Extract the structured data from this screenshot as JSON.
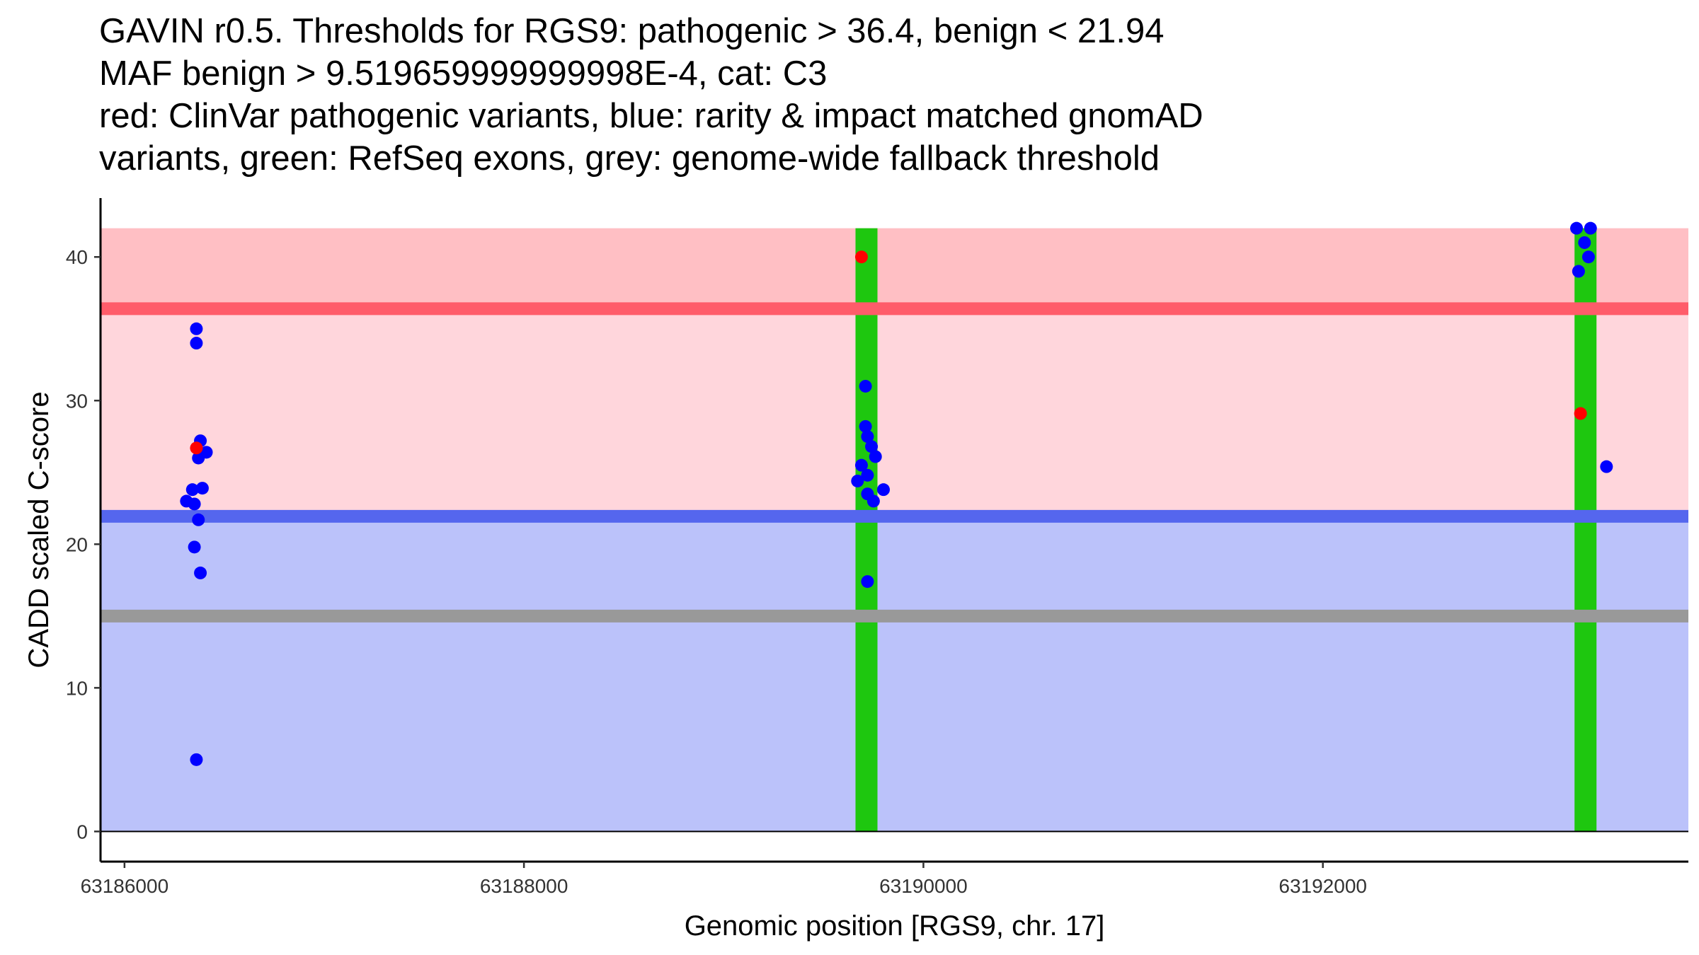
{
  "title_lines": [
    "GAVIN r0.5. Thresholds for RGS9: pathogenic > 36.4, benign < 21.94",
    "MAF benign > 9.519659999999998E-4, cat: C3",
    "red: ClinVar pathogenic variants, blue: rarity & impact matched gnomAD",
    "variants, green: RefSeq exons, grey: genome-wide fallback threshold"
  ],
  "chart_data": {
    "type": "scatter",
    "xlabel": "Genomic position [RGS9, chr. 17]",
    "ylabel": "CADD scaled C-score",
    "xlim": [
      63185880,
      63193830
    ],
    "ylim": [
      -2.1,
      44.1
    ],
    "x_ticks": [
      63186000,
      63188000,
      63190000,
      63192000
    ],
    "y_ticks": [
      0,
      10,
      20,
      30,
      40
    ],
    "colors": {
      "pathogenic_region": "#ffbfc4",
      "mid_region": "#ffd6dc",
      "benign_region": "#bbc2fa",
      "pathogenic_line": "#ff5c6a",
      "benign_line": "#5566ee",
      "fallback_line": "#999999",
      "exon": "#1ec70f",
      "pathogenic_point": "#ff0000",
      "benign_point": "#0000ff"
    },
    "thresholds": {
      "pathogenic": 36.4,
      "benign": 21.94,
      "fallback": 15.0,
      "region_top": 42.0
    },
    "exons": [
      {
        "start": 63189660,
        "end": 63189770
      },
      {
        "start": 63193260,
        "end": 63193370
      }
    ],
    "series": [
      {
        "name": "ClinVar pathogenic",
        "color": "#ff0000",
        "points": [
          {
            "x": 63186360,
            "y": 26.7
          },
          {
            "x": 63189690,
            "y": 40.0
          },
          {
            "x": 63193290,
            "y": 29.1
          }
        ]
      },
      {
        "name": "gnomAD matched",
        "color": "#0000ff",
        "points": [
          {
            "x": 63186360,
            "y": 35.0
          },
          {
            "x": 63186360,
            "y": 34.0
          },
          {
            "x": 63186380,
            "y": 27.2
          },
          {
            "x": 63186410,
            "y": 26.4
          },
          {
            "x": 63186370,
            "y": 26.0
          },
          {
            "x": 63186340,
            "y": 23.8
          },
          {
            "x": 63186390,
            "y": 23.9
          },
          {
            "x": 63186310,
            "y": 23.0
          },
          {
            "x": 63186350,
            "y": 22.8
          },
          {
            "x": 63186370,
            "y": 21.7
          },
          {
            "x": 63186350,
            "y": 19.8
          },
          {
            "x": 63186380,
            "y": 18.0
          },
          {
            "x": 63186360,
            "y": 5.0
          },
          {
            "x": 63189710,
            "y": 31.0
          },
          {
            "x": 63189710,
            "y": 28.2
          },
          {
            "x": 63189720,
            "y": 27.5
          },
          {
            "x": 63189740,
            "y": 26.8
          },
          {
            "x": 63189760,
            "y": 26.1
          },
          {
            "x": 63189690,
            "y": 25.5
          },
          {
            "x": 63189720,
            "y": 24.8
          },
          {
            "x": 63189670,
            "y": 24.4
          },
          {
            "x": 63189800,
            "y": 23.8
          },
          {
            "x": 63189720,
            "y": 23.5
          },
          {
            "x": 63189750,
            "y": 23.0
          },
          {
            "x": 63189720,
            "y": 17.4
          },
          {
            "x": 63193270,
            "y": 42.0
          },
          {
            "x": 63193340,
            "y": 42.0
          },
          {
            "x": 63193310,
            "y": 41.0
          },
          {
            "x": 63193330,
            "y": 40.0
          },
          {
            "x": 63193280,
            "y": 39.0
          },
          {
            "x": 63193420,
            "y": 25.4
          }
        ]
      }
    ]
  }
}
